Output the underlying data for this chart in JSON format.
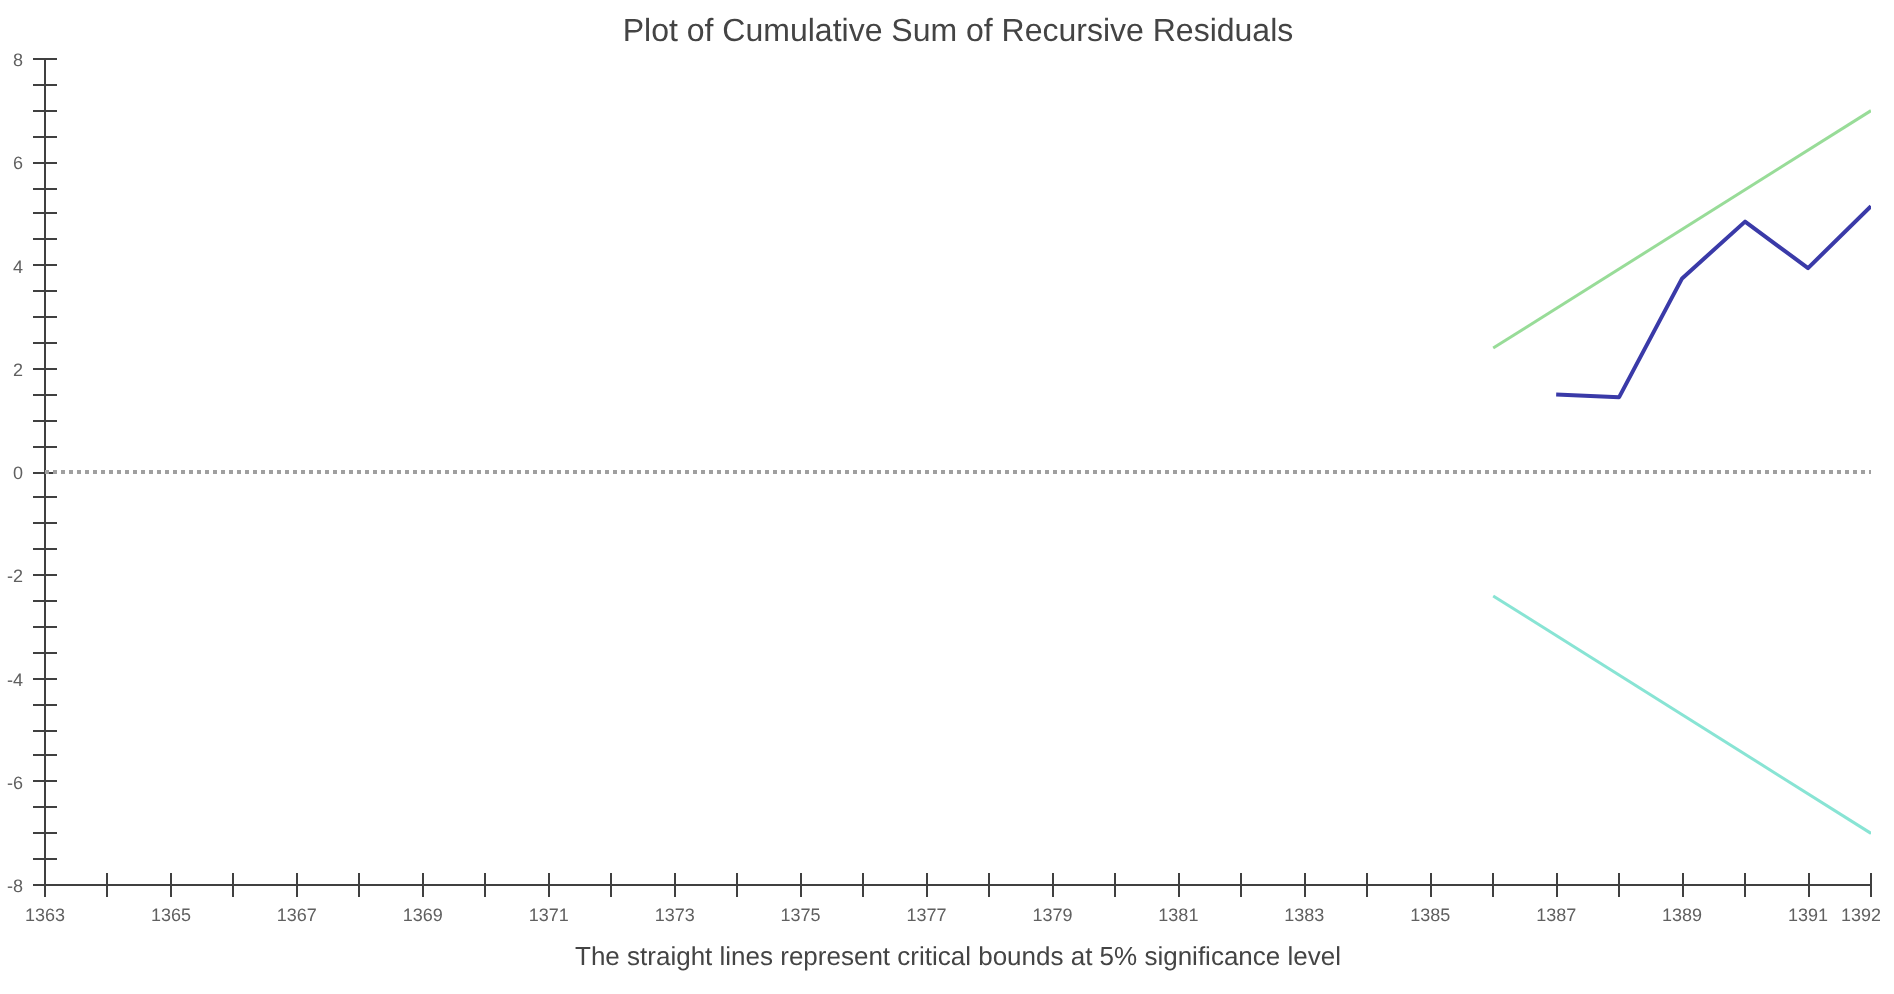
{
  "chart_data": {
    "type": "line",
    "title": "Plot of Cumulative Sum of Recursive Residuals",
    "annotations": [
      "The straight lines represent critical bounds at 5% significance level"
    ],
    "series": [
      {
        "color": "#3a3aa8",
        "x": [
          1387,
          1388,
          1389,
          1390,
          1391,
          1392
        ],
        "values": [
          1.5,
          1.45,
          3.75,
          4.85,
          3.95,
          5.15
        ]
      },
      {
        "color": "#98dc98",
        "x": [
          1386,
          1392
        ],
        "values": [
          2.4,
          7.0
        ]
      },
      {
        "color": "#88e4d4",
        "x": [
          1386,
          1392
        ],
        "values": [
          -2.4,
          -7.0
        ]
      }
    ],
    "xlim": [
      1363,
      1392
    ],
    "ylim": [
      -8,
      8
    ],
    "xticks": [
      1363,
      {
        "value": 1364,
        "label": null
      },
      1365,
      {
        "value": 1366,
        "label": null
      },
      1367,
      {
        "value": 1368,
        "label": null
      },
      1369,
      {
        "value": 1370,
        "label": null
      },
      1371,
      {
        "value": 1372,
        "label": null
      },
      1373,
      {
        "value": 1374,
        "label": null
      },
      1375,
      {
        "value": 1376,
        "label": null
      },
      1377,
      {
        "value": 1378,
        "label": null
      },
      1379,
      {
        "value": 1380,
        "label": null
      },
      1381,
      {
        "value": 1382,
        "label": null
      },
      1383,
      {
        "value": 1384,
        "label": null
      },
      1385,
      {
        "value": 1386,
        "label": null
      },
      1387,
      {
        "value": 1388,
        "label": null
      },
      1389,
      {
        "value": 1390,
        "label": null
      },
      1391,
      1392
    ],
    "yticks": [
      -8,
      {
        "value": -7.5,
        "label": null
      },
      {
        "value": -7,
        "label": null
      },
      {
        "value": -6.5,
        "label": null
      },
      -6,
      {
        "value": -5.5,
        "label": null
      },
      {
        "value": -5,
        "label": null
      },
      {
        "value": -4.5,
        "label": null
      },
      -4,
      {
        "value": -3.5,
        "label": null
      },
      {
        "value": -3,
        "label": null
      },
      {
        "value": -2.5,
        "label": null
      },
      -2,
      {
        "value": -1.5,
        "label": null
      },
      {
        "value": -1,
        "label": null
      },
      {
        "value": -0.5,
        "label": null
      },
      0,
      {
        "value": 0.5,
        "label": null
      },
      {
        "value": 1,
        "label": null
      },
      {
        "value": 1.5,
        "label": null
      },
      2,
      {
        "value": 2.5,
        "label": null
      },
      {
        "value": 3,
        "label": null
      },
      {
        "value": 3.5,
        "label": null
      },
      4,
      {
        "value": 4.5,
        "label": null
      },
      {
        "value": 5,
        "label": null
      },
      {
        "value": 5.5,
        "label": null
      },
      6,
      {
        "value": 6.5,
        "label": null
      },
      {
        "value": 7,
        "label": null
      },
      {
        "value": 7.5,
        "label": null
      },
      8
    ],
    "ref_lines": [
      {
        "axis": "y",
        "value": 0,
        "color": "#a0a0a0",
        "line_style": "dotted"
      }
    ],
    "grid": false
  }
}
